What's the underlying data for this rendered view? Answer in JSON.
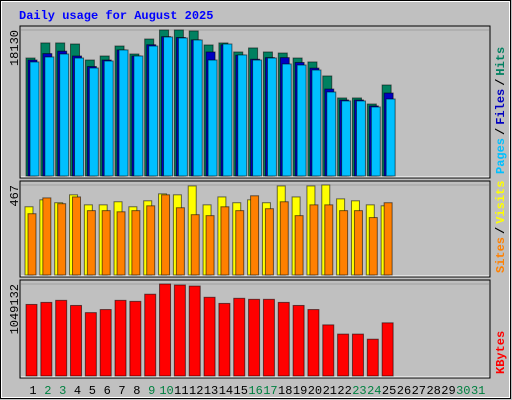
{
  "chart_data": [
    {
      "type": "bar",
      "title": "Daily usage for August 2025",
      "legend_separator": "/",
      "ylim": [
        0,
        18130
      ],
      "yticks": [
        18130
      ],
      "series": [
        {
          "name": "Hits",
          "color": "#008060",
          "values": [
            14650,
            16520,
            16520,
            16390,
            14400,
            14900,
            16140,
            15150,
            17010,
            18130,
            18130,
            18010,
            16270,
            16520,
            15400,
            15900,
            15400,
            15270,
            14650,
            14160,
            12420,
            9690,
            9690,
            8940,
            11300,
            null,
            null,
            null,
            null,
            null,
            null
          ]
        },
        {
          "name": "Files",
          "color": "#0000c0",
          "values": [
            14400,
            15200,
            15500,
            14900,
            13600,
            14400,
            15650,
            14900,
            16300,
            17300,
            17200,
            16900,
            15400,
            16300,
            15000,
            14500,
            14700,
            14700,
            14100,
            13400,
            10800,
            9440,
            9440,
            8700,
            10300,
            null,
            null,
            null,
            null,
            null,
            null
          ]
        },
        {
          "name": "Pages",
          "color": "#00c0ff",
          "values": [
            14160,
            14780,
            15150,
            14650,
            13410,
            14280,
            15650,
            14900,
            16140,
            17260,
            17140,
            16890,
            14400,
            16390,
            15030,
            14400,
            14650,
            13910,
            13780,
            13160,
            10430,
            9320,
            9320,
            8570,
            9560,
            null,
            null,
            null,
            null,
            null,
            null
          ]
        }
      ]
    },
    {
      "type": "bar",
      "legend_separator": "/",
      "ylim": [
        0,
        467
      ],
      "yticks": [
        467
      ],
      "series": [
        {
          "name": "Visits",
          "color": "#ffff00",
          "values": [
            354,
            390,
            375,
            416,
            364,
            364,
            380,
            354,
            385,
            421,
            416,
            462,
            364,
            405,
            375,
            390,
            375,
            462,
            405,
            462,
            467,
            395,
            385,
            364,
            359,
            null,
            null,
            null,
            null,
            null,
            null
          ]
        },
        {
          "name": "Sites",
          "color": "#ff8000",
          "values": [
            318,
            400,
            370,
            405,
            334,
            334,
            328,
            334,
            359,
            416,
            349,
            313,
            308,
            354,
            334,
            411,
            344,
            380,
            308,
            364,
            364,
            334,
            334,
            298,
            375,
            null,
            null,
            null,
            null,
            null,
            null
          ]
        }
      ]
    },
    {
      "type": "bar",
      "ylim": [
        0,
        1049132
      ],
      "yticks": [
        1049132
      ],
      "categories": [
        "1",
        "2",
        "3",
        "4",
        "5",
        "6",
        "7",
        "8",
        "9",
        "10",
        "11",
        "12",
        "13",
        "14",
        "15",
        "16",
        "17",
        "18",
        "19",
        "20",
        "21",
        "22",
        "23",
        "24",
        "25",
        "26",
        "27",
        "28",
        "29",
        "30",
        "31"
      ],
      "category_colors": [
        "#000000",
        "#008040",
        "#008040",
        "#000000",
        "#000000",
        "#000000",
        "#000000",
        "#000000",
        "#008040",
        "#008040",
        "#000000",
        "#000000",
        "#000000",
        "#000000",
        "#000000",
        "#008040",
        "#008040",
        "#000000",
        "#000000",
        "#000000",
        "#000000",
        "#000000",
        "#008040",
        "#008040",
        "#000000",
        "#000000",
        "#000000",
        "#000000",
        "#000000",
        "#008040",
        "#008040"
      ],
      "series": [
        {
          "name": "KBytes",
          "color": "#ff0000",
          "values": [
            816000,
            839300,
            862600,
            804300,
            722700,
            757700,
            862600,
            851000,
            932600,
            1049132,
            1037500,
            1025800,
            897600,
            827600,
            885900,
            874300,
            874300,
            839300,
            804300,
            757700,
            582900,
            477900,
            477900,
            419700,
            606200,
            null,
            null,
            null,
            null,
            null,
            null
          ]
        }
      ]
    }
  ]
}
